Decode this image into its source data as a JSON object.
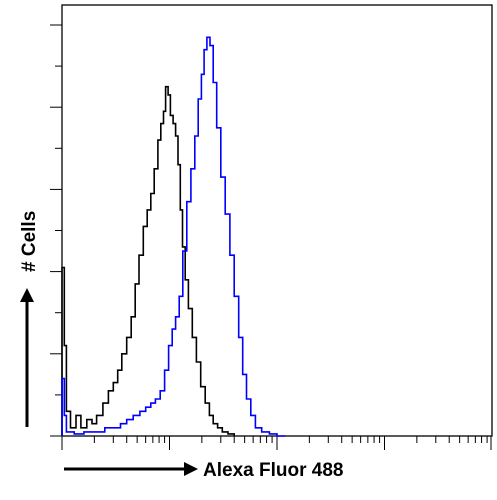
{
  "chart_data": {
    "type": "area",
    "title": "",
    "xlabel": "Alexa Fluor 488",
    "ylabel": "# Cells",
    "x_scale": "log",
    "xlim": [
      1,
      10000
    ],
    "ylim": [
      0,
      100
    ],
    "grid": false,
    "legend": "none",
    "series": [
      {
        "color": "#000000",
        "x": [
          1.0,
          1.05,
          1.1,
          1.2,
          1.35,
          1.5,
          1.7,
          1.9,
          2.1,
          2.4,
          2.7,
          3.0,
          3.3,
          3.6,
          4.0,
          4.4,
          4.8,
          5.2,
          5.7,
          6.2,
          6.7,
          7.2,
          7.8,
          8.3,
          8.8,
          9.2,
          9.7,
          10.2,
          10.8,
          11.4,
          12.0,
          12.6,
          13.2,
          14.0,
          15.0,
          16.3,
          17.8,
          19.5,
          21.5,
          23.5,
          25.5,
          28.0,
          31.0,
          35.0,
          40.0
        ],
        "y": [
          41.0,
          22.0,
          6.0,
          2.0,
          5.0,
          2.0,
          4.0,
          3.0,
          5.0,
          8.0,
          11.0,
          13.0,
          16.0,
          20.0,
          24.0,
          29.0,
          37.0,
          44.0,
          51.0,
          55.0,
          59.0,
          65.0,
          72.0,
          76.0,
          79.0,
          85.0,
          83.0,
          78.0,
          76.0,
          73.0,
          66.0,
          55.0,
          46.0,
          38.0,
          31.0,
          24.0,
          18.0,
          12.0,
          8.0,
          5.0,
          3.0,
          2.0,
          1.0,
          0.5,
          0.0
        ]
      },
      {
        "color": "#0000ff",
        "x": [
          1.0,
          1.05,
          1.1,
          1.3,
          1.6,
          2.0,
          2.5,
          3.0,
          3.5,
          4.0,
          4.6,
          5.3,
          6.0,
          6.7,
          7.4,
          8.2,
          9.0,
          9.8,
          10.6,
          11.4,
          12.3,
          13.3,
          14.5,
          15.8,
          17.2,
          18.5,
          19.8,
          21.0,
          22.3,
          23.8,
          25.5,
          27.5,
          30.0,
          33.0,
          36.5,
          40.0,
          44.0,
          48.0,
          52.0,
          57.0,
          63.0,
          72.0,
          85.0,
          100.0,
          120.0
        ],
        "y": [
          14.0,
          5.0,
          1.0,
          0.5,
          1.0,
          1.0,
          2.0,
          2.0,
          3.0,
          4.0,
          5.0,
          6.0,
          7.0,
          8.0,
          9.0,
          11.0,
          16.0,
          22.0,
          26.0,
          29.0,
          34.0,
          45.0,
          57.0,
          65.0,
          73.0,
          82.0,
          88.0,
          94.0,
          97.0,
          95.0,
          86.0,
          75.0,
          63.0,
          54.0,
          44.0,
          34.0,
          24.0,
          15.0,
          9.0,
          5.0,
          2.0,
          1.0,
          0.5,
          0.0,
          0.0
        ]
      }
    ]
  }
}
